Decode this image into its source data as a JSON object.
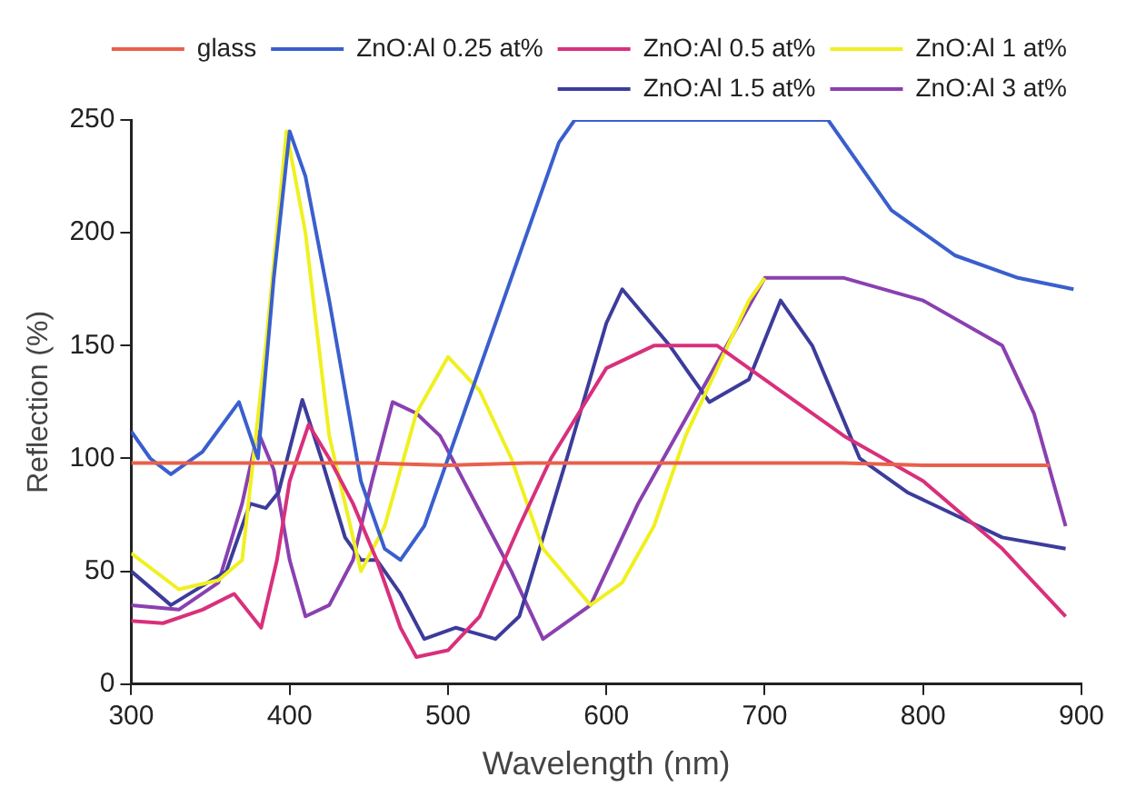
{
  "chart_data": {
    "type": "line",
    "xlabel": "Wavelength (nm)",
    "ylabel": "Reflection (%)",
    "xlim": [
      300,
      900
    ],
    "xticks": [
      300,
      400,
      500,
      600,
      700,
      800,
      900
    ],
    "ylim": [
      0,
      250
    ],
    "yticks": [
      0,
      50,
      100,
      150,
      200,
      250
    ],
    "grid": false,
    "legend": "top right",
    "marker": "none",
    "line_style": "solid",
    "series": [
      {
        "name": "glass",
        "color": "#e8604c",
        "x": [
          300,
          350,
          400,
          450,
          500,
          550,
          600,
          650,
          700,
          750,
          800,
          850,
          880
        ],
        "values": [
          98,
          98,
          98,
          98,
          97,
          98,
          98,
          98,
          98,
          98,
          97,
          97,
          97
        ]
      },
      {
        "name": "ZnO:Al 0.25 at%",
        "color": "#3a5fcd",
        "x": [
          300,
          312,
          325,
          345,
          368,
          380,
          390,
          400,
          410,
          425,
          445,
          460,
          470,
          485,
          500,
          525,
          550,
          570,
          580,
          600,
          650,
          700,
          740,
          780,
          820,
          860,
          895
        ],
        "values": [
          112,
          100,
          93,
          103,
          125,
          100,
          180,
          245,
          225,
          170,
          90,
          60,
          55,
          70,
          100,
          150,
          200,
          240,
          250,
          250,
          250,
          250,
          250,
          210,
          190,
          180,
          175
        ]
      },
      {
        "name": "ZnO:Al 0.5 at%",
        "color": "#d8307c",
        "x": [
          300,
          320,
          345,
          365,
          382,
          392,
          400,
          412,
          425,
          440,
          455,
          470,
          480,
          500,
          520,
          545,
          565,
          600,
          630,
          670,
          700,
          750,
          800,
          850,
          890
        ],
        "values": [
          28,
          27,
          33,
          40,
          25,
          55,
          90,
          115,
          100,
          80,
          55,
          25,
          12,
          15,
          30,
          70,
          100,
          140,
          150,
          150,
          135,
          110,
          90,
          60,
          30
        ]
      },
      {
        "name": "ZnO:Al 1 at%",
        "color": "#f0f020",
        "x": [
          300,
          330,
          355,
          370,
          385,
          398,
          410,
          425,
          445,
          460,
          480,
          500,
          520,
          540,
          560,
          590,
          610,
          630,
          650,
          670,
          690,
          700
        ],
        "values": [
          58,
          42,
          46,
          55,
          150,
          245,
          200,
          110,
          50,
          70,
          120,
          145,
          130,
          100,
          60,
          35,
          45,
          70,
          110,
          140,
          170,
          180
        ]
      },
      {
        "name": "ZnO:Al 1.5 at%",
        "color": "#3c3c9c",
        "x": [
          300,
          325,
          360,
          375,
          385,
          393,
          408,
          420,
          435,
          445,
          455,
          470,
          485,
          505,
          530,
          545,
          575,
          600,
          610,
          640,
          665,
          690,
          710,
          730,
          760,
          790,
          820,
          850,
          890
        ],
        "values": [
          50,
          35,
          50,
          80,
          78,
          85,
          126,
          100,
          65,
          55,
          55,
          40,
          20,
          25,
          20,
          30,
          100,
          160,
          175,
          150,
          125,
          135,
          170,
          150,
          100,
          85,
          75,
          65,
          60
        ]
      },
      {
        "name": "ZnO:Al 3 at%",
        "color": "#8a40b0",
        "x": [
          300,
          330,
          355,
          370,
          380,
          390,
          400,
          410,
          425,
          440,
          452,
          465,
          480,
          495,
          510,
          525,
          540,
          560,
          590,
          620,
          660,
          700,
          750,
          800,
          850,
          870,
          890
        ],
        "values": [
          35,
          33,
          45,
          80,
          112,
          95,
          55,
          30,
          35,
          55,
          90,
          125,
          120,
          110,
          90,
          70,
          50,
          20,
          35,
          80,
          130,
          180,
          180,
          170,
          150,
          120,
          70
        ]
      }
    ]
  }
}
